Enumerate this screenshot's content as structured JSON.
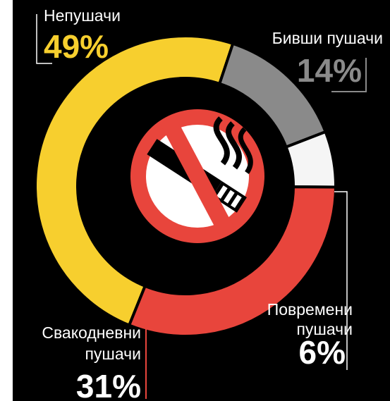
{
  "chart_data": {
    "type": "pie",
    "categories": [
      "Непушачи",
      "Бивши пушачи",
      "Повремени пушачи",
      "Свакодневни пушачи"
    ],
    "values": [
      49,
      14,
      6,
      31
    ],
    "value_labels": [
      "49%",
      "14%",
      "6%",
      "31%"
    ],
    "label_lines": [
      [
        "Непушачи"
      ],
      [
        "Бивши пушачи"
      ],
      [
        "Повремени",
        "пушачи"
      ],
      [
        "Свакодневни",
        "пушачи"
      ]
    ],
    "colors": [
      "#f7cf2e",
      "#8a8a8a",
      "#f5f5f5",
      "#e8453c"
    ],
    "center_icon": "no-smoking-icon",
    "background": "#000000"
  }
}
